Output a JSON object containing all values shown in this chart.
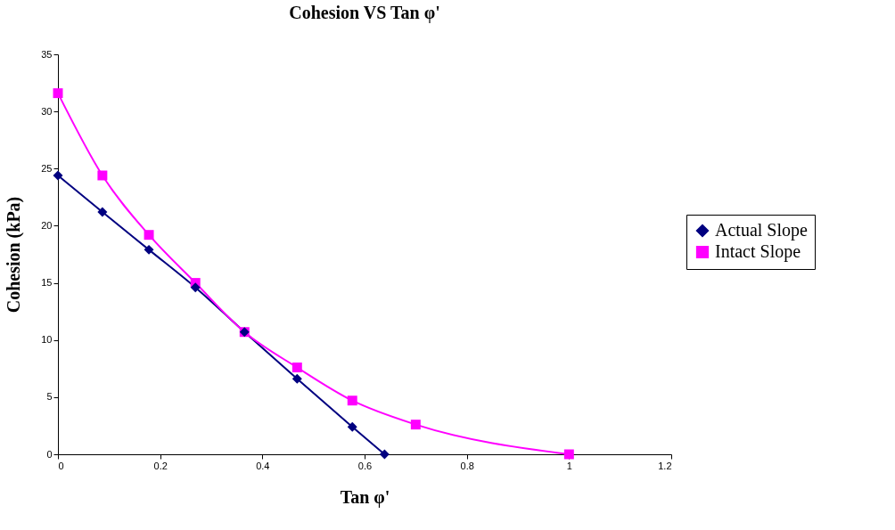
{
  "chart_data": {
    "type": "line",
    "title": "Cohesion VS Tan φ'",
    "xlabel": "Tan φ'",
    "ylabel": "Cohesion (kPa)",
    "xlim": [
      0,
      1.2
    ],
    "xticks": [
      0,
      0.2,
      0.4,
      0.6,
      0.8,
      1,
      1.2
    ],
    "ylim": [
      0,
      35
    ],
    "yticks": [
      0,
      5,
      10,
      15,
      20,
      25,
      30,
      35
    ],
    "grid": false,
    "legend": "right",
    "line_style": "solid",
    "series": [
      {
        "name": "Actual Slope",
        "color": "#000080",
        "marker": "diamond",
        "x": [
          0,
          0.087,
          0.178,
          0.269,
          0.365,
          0.468,
          0.576,
          0.639
        ],
        "values": [
          24.4,
          21.2,
          17.9,
          14.6,
          10.7,
          6.6,
          2.4,
          0
        ]
      },
      {
        "name": "Intact Slope",
        "color": "#ff00ff",
        "marker": "square",
        "x": [
          0,
          0.087,
          0.178,
          0.269,
          0.365,
          0.468,
          0.576,
          0.7,
          1.0
        ],
        "values": [
          31.6,
          24.4,
          19.2,
          15.0,
          10.7,
          7.6,
          4.7,
          2.6,
          0
        ]
      }
    ]
  }
}
